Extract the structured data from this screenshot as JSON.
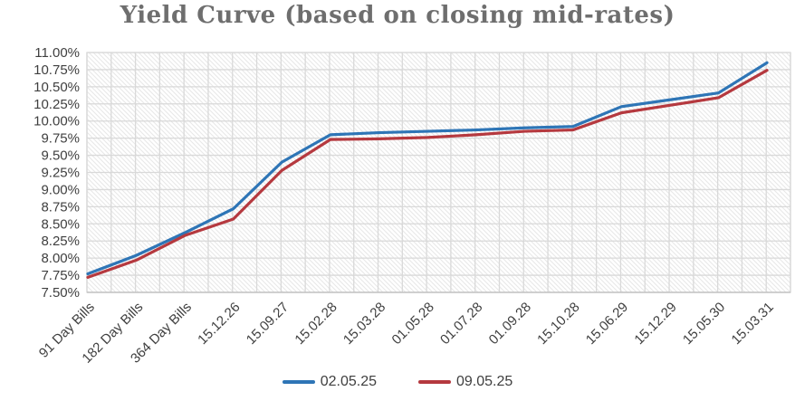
{
  "title": "Yield Curve (based on closing mid-rates)",
  "colors": {
    "title_text": "#6e6e6e",
    "axis_text": "#3f3f3f",
    "gridline": "#d9d9d9",
    "axis_line": "#bfbfbf",
    "hatch": "#e8e8e8",
    "series1": "#2E75B6",
    "series2": "#B5393F"
  },
  "chart_data": {
    "type": "line",
    "title": "Yield Curve (based on closing mid-rates)",
    "categories": [
      "91 Day Bills",
      "182 Day Bills",
      "364 Day Bills",
      "15.12.26",
      "15.09.27",
      "15.02.28",
      "15.03.28",
      "01.05.28",
      "01.07.28",
      "01.09.28",
      "15.10.28",
      "15.06.29",
      "15.12.29",
      "15.05.30",
      "15.03.31"
    ],
    "series": [
      {
        "name": "02.05.25",
        "color": "#2E75B6",
        "values": [
          7.77,
          8.04,
          8.37,
          8.72,
          9.4,
          9.8,
          9.83,
          9.85,
          9.87,
          9.9,
          9.92,
          10.21,
          10.31,
          10.41,
          10.85
        ]
      },
      {
        "name": "09.05.25",
        "color": "#B5393F",
        "values": [
          7.72,
          7.97,
          8.33,
          8.57,
          9.28,
          9.73,
          9.74,
          9.76,
          9.8,
          9.85,
          9.87,
          10.12,
          10.23,
          10.34,
          10.74
        ]
      }
    ],
    "xlabel": "",
    "ylabel": "",
    "ylim": [
      7.5,
      11.0
    ],
    "ytick_step": 0.25,
    "ytick_format": "percent2",
    "grid": true,
    "plot_background": "diagonal-hatch",
    "legend_position": "bottom"
  }
}
